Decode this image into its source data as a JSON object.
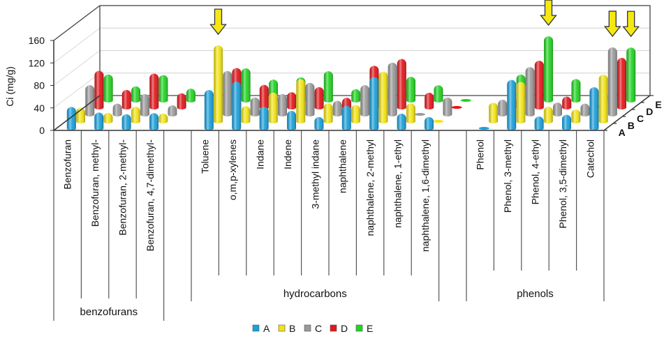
{
  "chart_data": {
    "type": "bar",
    "subtype": "3d-cylinder",
    "title": "",
    "ylabel": "Ci (mg/g)",
    "xlabel": "",
    "ylim": [
      0,
      160
    ],
    "yticks": [
      "0",
      "40",
      "80",
      "120",
      "160"
    ],
    "grid": true,
    "legend_position": "bottom",
    "depth_labels": [
      "A",
      "B",
      "C",
      "D",
      "E"
    ],
    "groups": [
      {
        "name": "benzofurans",
        "span": [
          0,
          3
        ]
      },
      {
        "name": "hydrocarbons",
        "span": [
          5,
          13
        ]
      },
      {
        "name": "phenols",
        "span": [
          15,
          19
        ]
      }
    ],
    "categories": [
      "Benzofuran",
      "Benzofuran, methyl-",
      "Benzofuran, 2-methyl-",
      "Benzofuran, 4,7-dimethyl-",
      "",
      "Toluene",
      "o,m,p-xylenes",
      "Indane",
      "Indene",
      "3-methyl indane",
      "naphthalene",
      "naphthalene, 2-methyl",
      "naphthalene, 1-ethyl",
      "naphthalene, 1,6-dimethyl",
      "",
      "Phenol",
      "Phenol, 3-methyl",
      "Phenol, 4-ethyl",
      "Phenol, 3,5-dimethyl",
      "Catechol"
    ],
    "series": [
      {
        "name": "A",
        "color": "#1aa0dc",
        "values": [
          38,
          28,
          25,
          27,
          null,
          68,
          83,
          38,
          31,
          20,
          40,
          91,
          26,
          20,
          null,
          0,
          86,
          21,
          24,
          73
        ]
      },
      {
        "name": "B",
        "color": "#f2e414",
        "values": [
          24,
          15,
          26,
          14,
          null,
          135,
          27,
          51,
          75,
          32,
          29,
          88,
          32,
          0,
          null,
          33,
          70,
          26,
          21,
          83
        ]
      },
      {
        "name": "C",
        "color": "#9a9a9a",
        "values": [
          52,
          19,
          36,
          16,
          null,
          77,
          30,
          36,
          56,
          24,
          52,
          92,
          1,
          30,
          null,
          26,
          84,
          21,
          19,
          119
        ]
      },
      {
        "name": "D",
        "color": "#e3161b",
        "values": [
          65,
          31,
          60,
          25,
          null,
          70,
          40,
          27,
          36,
          17,
          74,
          86,
          26,
          0,
          null,
          20,
          83,
          19,
          10,
          88
        ]
      },
      {
        "name": "E",
        "color": "#22d322",
        "values": [
          46,
          25,
          45,
          21,
          null,
          57,
          37,
          41,
          52,
          20,
          30,
          42,
          27,
          0,
          null,
          46,
          114,
          38,
          15,
          94
        ]
      }
    ],
    "highlight_arrows": [
      {
        "category": "Toluene",
        "series": "B"
      },
      {
        "category": "Phenol, 3-methyl",
        "series": "E"
      },
      {
        "category": "Catechol",
        "series": "C"
      },
      {
        "category": "Catechol",
        "series": "E"
      }
    ],
    "arrow_color": "#f5e812"
  }
}
